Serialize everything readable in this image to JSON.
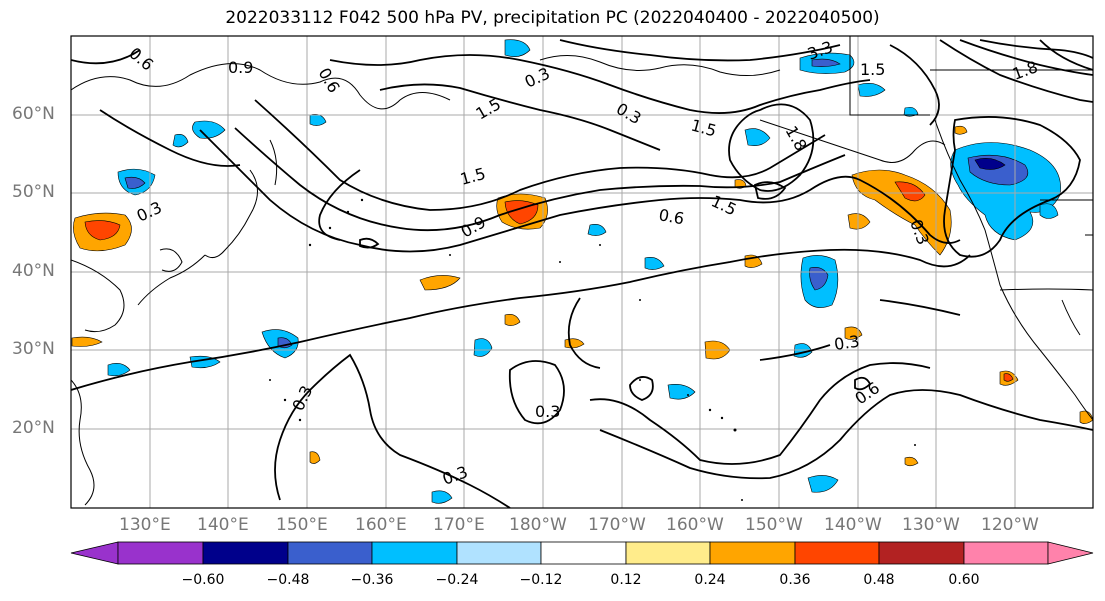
{
  "title": "2022033112 F042 500 hPa PV, precipitation PC (2022040400 - 2022040500)",
  "lat_labels": [
    "60°N",
    "50°N",
    "40°N",
    "30°N",
    "20°N"
  ],
  "lon_labels": [
    "130°E",
    "140°E",
    "150°E",
    "160°E",
    "170°E",
    "180°W",
    "170°W",
    "160°W",
    "150°W",
    "140°W",
    "130°W",
    "120°W"
  ],
  "contour_labels": [
    "0.6",
    "0.9",
    "0.6",
    "0.3",
    "1.5",
    "1.5",
    "1.5",
    "0.3",
    "1.8",
    "0.9",
    "1.5",
    "0.6",
    "0.3",
    "0.3",
    "0.3",
    "0.3",
    "0.6",
    "0.3",
    "0.3",
    "3.3",
    "1.5",
    "1.8"
  ],
  "colorbar": {
    "ticks": [
      "−0.60",
      "−0.48",
      "−0.36",
      "−0.24",
      "−0.12",
      "0.12",
      "0.24",
      "0.36",
      "0.48",
      "0.60"
    ],
    "colors": [
      "#9932cc",
      "#00008b",
      "#3a5fcd",
      "#00bfff",
      "#b0e2ff",
      "#ffffff",
      "#ffec8b",
      "#ffa500",
      "#ff4500",
      "#b22222",
      "#ff82ab"
    ]
  },
  "colors": {
    "neg_strong": "#00008b",
    "neg_mid": "#3a5fcd",
    "neg": "#00bfff",
    "pos": "#ffa500",
    "pos_mid": "#ff4500",
    "grid": "#a9a9a9",
    "contour": "#000000"
  }
}
